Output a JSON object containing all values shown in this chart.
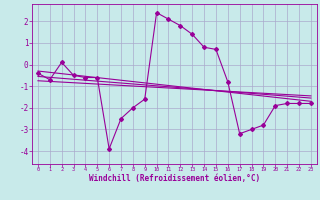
{
  "title": "",
  "xlabel": "Windchill (Refroidissement éolien,°C)",
  "bg_color": "#c8eaea",
  "grid_color": "#aaaacc",
  "line_color": "#990099",
  "xlim": [
    -0.5,
    23.5
  ],
  "ylim": [
    -4.6,
    2.8
  ],
  "xticks": [
    0,
    1,
    2,
    3,
    4,
    5,
    6,
    7,
    8,
    9,
    10,
    11,
    12,
    13,
    14,
    15,
    16,
    17,
    18,
    19,
    20,
    21,
    22,
    23
  ],
  "yticks": [
    -4,
    -3,
    -2,
    -1,
    0,
    1,
    2
  ],
  "series1_x": [
    0,
    1,
    2,
    3,
    4,
    5,
    6,
    7,
    8,
    9,
    10,
    11,
    12,
    13,
    14,
    15,
    16,
    17,
    18,
    19,
    20,
    21,
    22,
    23
  ],
  "series1_y": [
    -0.4,
    -0.7,
    0.1,
    -0.5,
    -0.6,
    -0.6,
    -3.9,
    -2.5,
    -2.0,
    -1.6,
    2.4,
    2.1,
    1.8,
    1.4,
    0.8,
    0.7,
    -0.8,
    -3.2,
    -3.0,
    -2.8,
    -1.9,
    -1.8,
    -1.8,
    -1.8
  ],
  "series2_x": [
    0,
    23
  ],
  "series2_y": [
    -0.3,
    -1.7
  ],
  "series3_x": [
    0,
    23
  ],
  "series3_y": [
    -0.55,
    -1.55
  ],
  "series4_x": [
    0,
    23
  ],
  "series4_y": [
    -0.75,
    -1.45
  ],
  "marker": "D",
  "markersize": 2,
  "linewidth": 0.8
}
